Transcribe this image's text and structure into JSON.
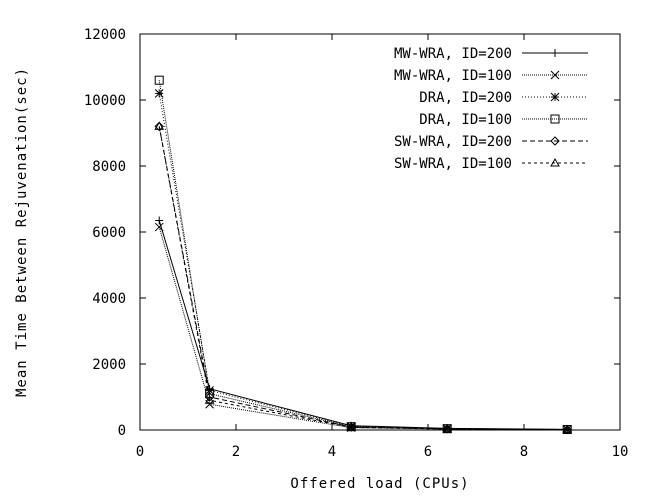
{
  "chart_data": {
    "type": "line",
    "xlabel": "Offered load (CPUs)",
    "ylabel": "Mean Time Between Rejuvenation(sec)",
    "xlim": [
      0,
      10
    ],
    "ylim": [
      0,
      12000
    ],
    "xticks": [
      0,
      2,
      4,
      6,
      8,
      10
    ],
    "yticks": [
      0,
      2000,
      4000,
      6000,
      8000,
      10000,
      12000
    ],
    "legend_position": "top-right",
    "grid": false,
    "series": [
      {
        "name": "MW-WRA, ID=200",
        "marker": "plus",
        "dash": "",
        "x": [
          0.4,
          1.45,
          4.4,
          6.4,
          8.9
        ],
        "y": [
          6350,
          1250,
          130,
          50,
          20
        ]
      },
      {
        "name": "MW-WRA, ID=100",
        "marker": "cross",
        "dash": "1,1",
        "x": [
          0.4,
          1.45,
          4.4,
          6.4,
          8.9
        ],
        "y": [
          6150,
          780,
          70,
          30,
          10
        ]
      },
      {
        "name": "DRA, ID=200",
        "marker": "star",
        "dash": "1,2",
        "x": [
          0.4,
          1.45,
          4.4,
          6.4,
          8.9
        ],
        "y": [
          10200,
          1200,
          110,
          45,
          15
        ]
      },
      {
        "name": "DRA, ID=100",
        "marker": "square",
        "dash": "1,1",
        "x": [
          0.4,
          1.45,
          4.4,
          6.4,
          8.9
        ],
        "y": [
          10600,
          1100,
          100,
          40,
          15
        ]
      },
      {
        "name": "SW-WRA, ID=200",
        "marker": "diamond",
        "dash": "5,3",
        "x": [
          0.4,
          1.45,
          4.4,
          6.4,
          8.9
        ],
        "y": [
          9200,
          1000,
          90,
          35,
          10
        ]
      },
      {
        "name": "SW-WRA, ID=100",
        "marker": "triangle",
        "dash": "3,3",
        "x": [
          0.4,
          1.45,
          4.4,
          6.4,
          8.9
        ],
        "y": [
          9200,
          900,
          80,
          30,
          10
        ]
      }
    ]
  }
}
